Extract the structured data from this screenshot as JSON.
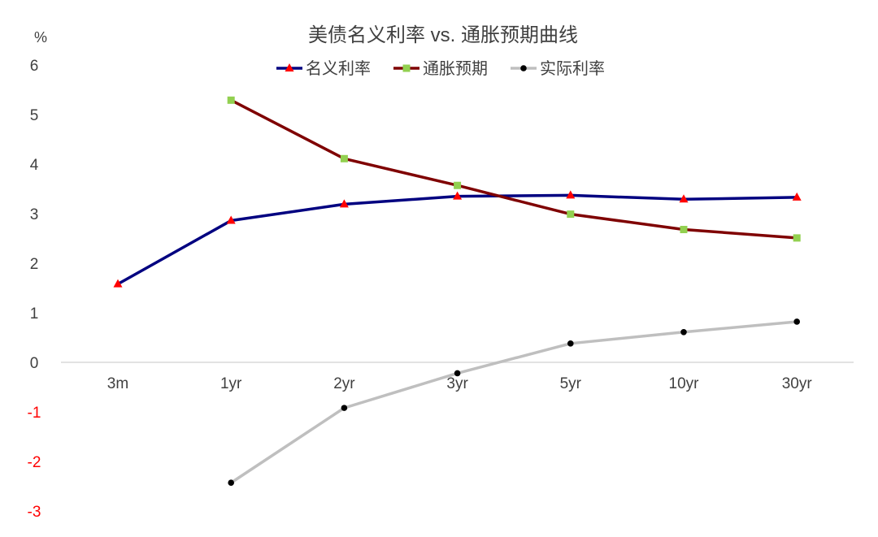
{
  "chart_data": {
    "type": "line",
    "title": "美债名义利率 vs. 通胀预期曲线",
    "ylabel": "%",
    "xlabel": "",
    "categories": [
      "3m",
      "1yr",
      "2yr",
      "3yr",
      "5yr",
      "10yr",
      "30yr"
    ],
    "ylim": [
      -3,
      6
    ],
    "yticks": [
      -3,
      -2,
      -1,
      0,
      1,
      2,
      3,
      4,
      5,
      6
    ],
    "legend_position": "top-center",
    "grid": false,
    "series": [
      {
        "name": "名义利率",
        "color": "#000080",
        "marker": "triangle",
        "marker_color": "#ff0000",
        "values": [
          1.58,
          2.86,
          3.19,
          3.35,
          3.37,
          3.29,
          3.33
        ]
      },
      {
        "name": "通胀预期",
        "color": "#7f0000",
        "marker": "square",
        "marker_color": "#92d050",
        "values": [
          null,
          5.29,
          4.11,
          3.57,
          2.99,
          2.68,
          2.51
        ]
      },
      {
        "name": "实际利率",
        "color": "#bfbfbf",
        "marker": "circle",
        "marker_color": "#000000",
        "values": [
          null,
          -2.43,
          -0.92,
          -0.22,
          0.38,
          0.61,
          0.82
        ]
      }
    ],
    "colors": {
      "positive_tick": "#404040",
      "negative_tick": "#ff0000",
      "axis_line": "#d9d9d9",
      "title": "#404040"
    }
  }
}
